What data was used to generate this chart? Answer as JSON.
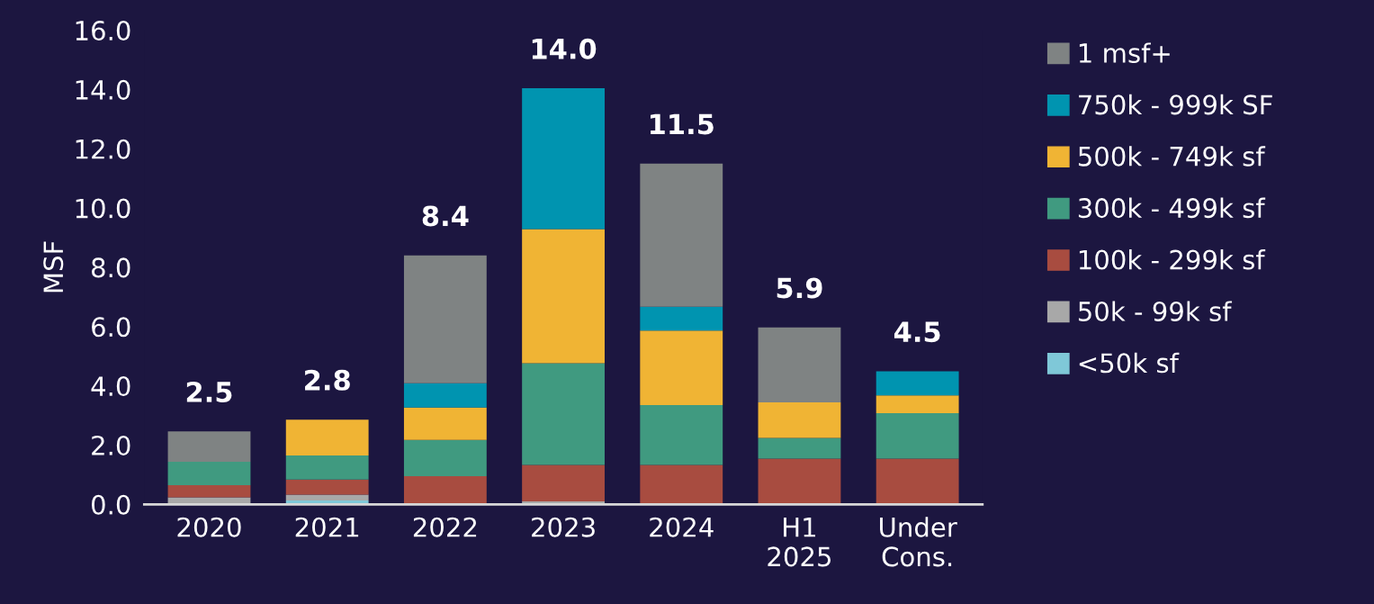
{
  "chart_data": {
    "type": "bar",
    "stacked": true,
    "ylabel": "MSF",
    "categories": [
      "2020",
      "2021",
      "2022",
      "2023",
      "2024",
      "H1\n2025",
      "Under\nCons."
    ],
    "series": [
      {
        "name": "<50k sf",
        "color": "#7fc8d8",
        "values": [
          0,
          0.13,
          0,
          0,
          0,
          0,
          0
        ]
      },
      {
        "name": "50k - 99k sf",
        "color": "#a8a8a8",
        "values": [
          0.24,
          0.2,
          0,
          0.1,
          0,
          0,
          0
        ]
      },
      {
        "name": "100k - 299k sf",
        "color": "#a84c40",
        "values": [
          0.41,
          0.51,
          0.95,
          1.23,
          1.33,
          1.54,
          1.54
        ]
      },
      {
        "name": "300k - 499k sf",
        "color": "#409a80",
        "values": [
          0.79,
          0.81,
          1.22,
          3.43,
          2.02,
          0.7,
          1.54
        ]
      },
      {
        "name": "500k - 749k sf",
        "color": "#f0b434",
        "values": [
          0,
          1.21,
          1.1,
          4.53,
          2.51,
          1.2,
          0.6
        ]
      },
      {
        "name": "750k - 999k SF",
        "color": "#0094b0",
        "values": [
          0,
          0,
          0.82,
          4.75,
          0.81,
          0,
          0.81
        ]
      },
      {
        "name": "1 msf+",
        "color": "#7f8383",
        "values": [
          1.02,
          0,
          4.31,
          0,
          4.83,
          2.53,
          0
        ]
      }
    ],
    "totals": [
      "2.5",
      "2.8",
      "8.4",
      "14.0",
      "11.5",
      "5.9",
      "4.5"
    ],
    "ylim": [
      0,
      16
    ],
    "yticks": [
      {
        "value": 0,
        "label": "0.0"
      },
      {
        "value": 2,
        "label": "2.0"
      },
      {
        "value": 4,
        "label": "4.0"
      },
      {
        "value": 6,
        "label": "6.0"
      },
      {
        "value": 8,
        "label": "8.0"
      },
      {
        "value": 10,
        "label": "10.0"
      },
      {
        "value": 12,
        "label": "12.0"
      },
      {
        "value": 14,
        "label": "14.0"
      },
      {
        "value": 16,
        "label": "16.0"
      }
    ],
    "grid": false,
    "legend": "right"
  }
}
